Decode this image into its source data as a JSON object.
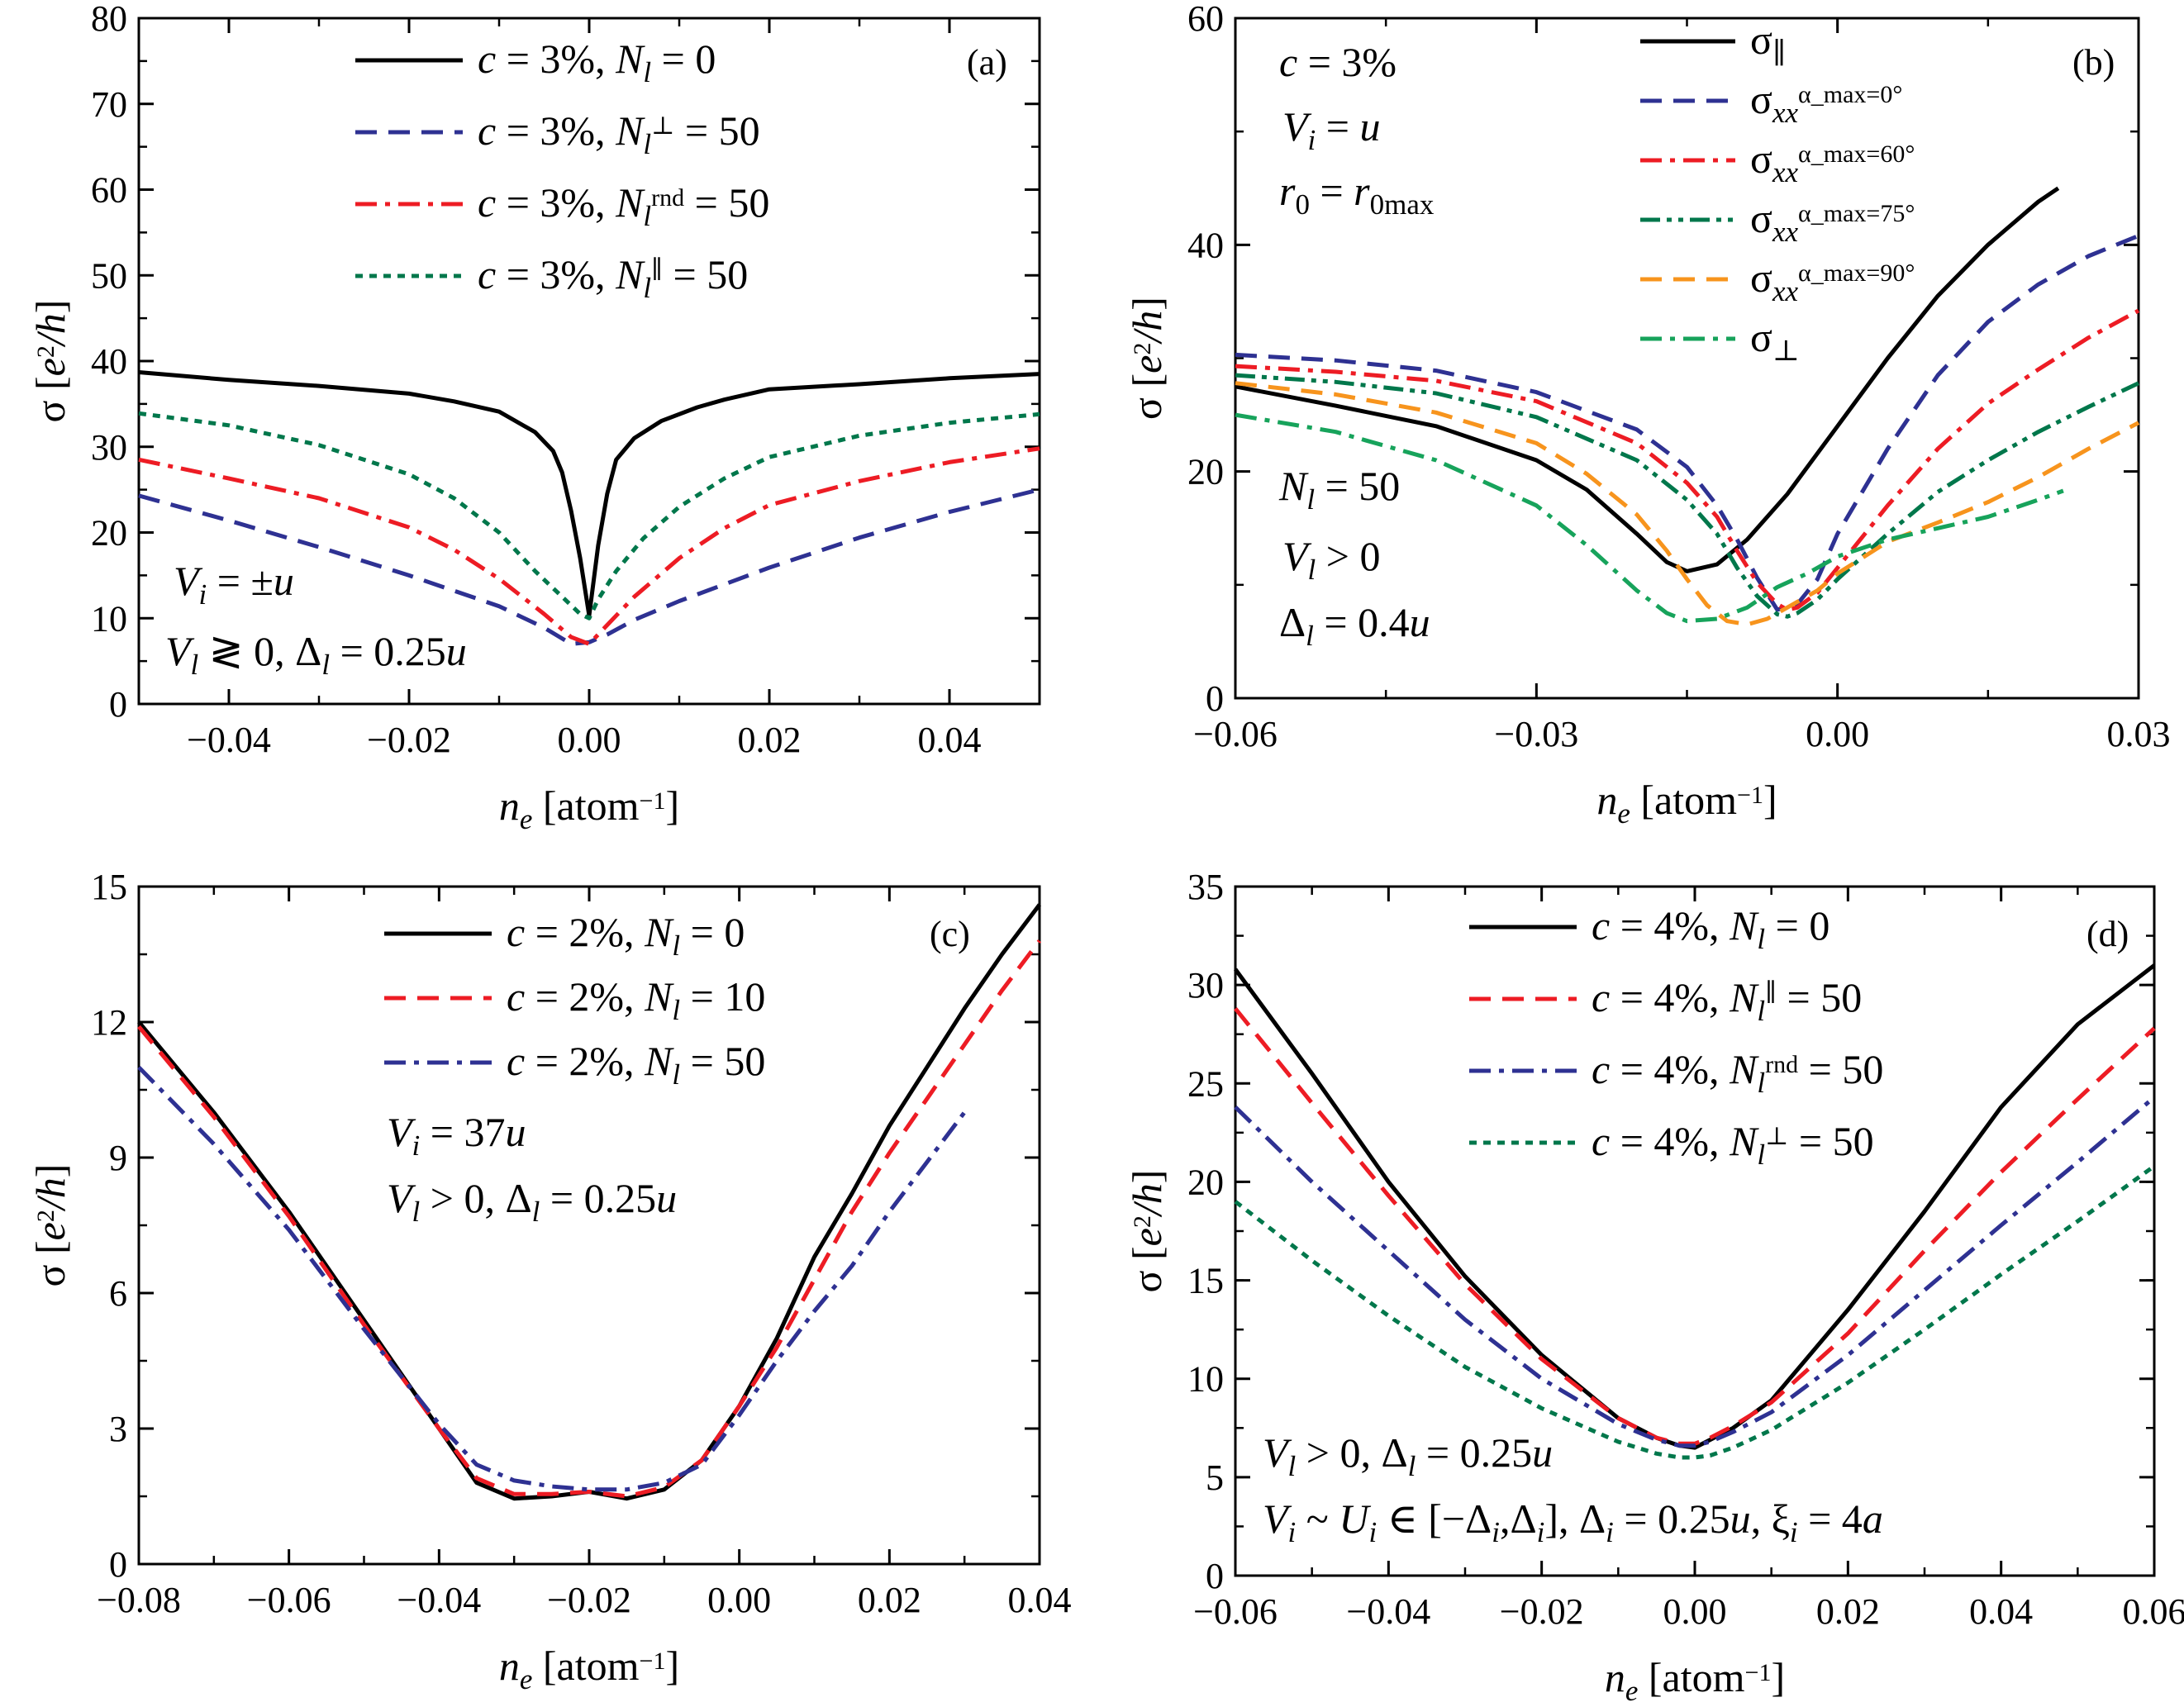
{
  "chart_data": [
    {
      "panel": "a",
      "type": "line",
      "panel_label": "(a)",
      "xlabel": "n_e [atom^-1]",
      "ylabel": "σ [e^2/h]",
      "xlim": [
        -0.05,
        0.05
      ],
      "ylim": [
        0,
        80
      ],
      "xticks": [
        -0.04,
        -0.02,
        0.0,
        0.02,
        0.04
      ],
      "xtick_labels": [
        "−0.04",
        "−0.02",
        "0.00",
        "0.02",
        "0.04"
      ],
      "yticks": [
        0,
        10,
        20,
        30,
        40,
        50,
        60,
        70,
        80
      ],
      "ytick_labels": [
        "0",
        "10",
        "20",
        "30",
        "40",
        "50",
        "60",
        "70",
        "80"
      ],
      "legend_position": "top",
      "annotations": [
        "V_i = ±u",
        "V_l ≷ 0, Δ_l = 0.25u"
      ],
      "series": [
        {
          "name": "c = 3%, N_l = 0",
          "color": "#000000",
          "dash": "solid",
          "x": [
            -0.05,
            -0.04,
            -0.03,
            -0.02,
            -0.015,
            -0.01,
            -0.006,
            -0.004,
            -0.003,
            -0.002,
            -0.001,
            0.0,
            0.001,
            0.002,
            0.003,
            0.005,
            0.008,
            0.012,
            0.015,
            0.02,
            0.03,
            0.04,
            0.05
          ],
          "y": [
            38.7,
            37.8,
            37.1,
            36.2,
            35.3,
            34.1,
            31.7,
            29.5,
            27.0,
            22.5,
            17.0,
            10.3,
            18.5,
            24.5,
            28.5,
            31.0,
            33.0,
            34.6,
            35.5,
            36.7,
            37.3,
            38.0,
            38.5
          ]
        },
        {
          "name": "c = 3%, N_l^⊥ = 50",
          "color": "#2e3192",
          "dash": "dash",
          "x": [
            -0.05,
            -0.04,
            -0.03,
            -0.02,
            -0.01,
            -0.005,
            -0.002,
            0.0,
            0.002,
            0.005,
            0.01,
            0.02,
            0.03,
            0.04,
            0.05
          ],
          "y": [
            24.3,
            21.4,
            18.3,
            15.0,
            11.4,
            8.9,
            7.0,
            7.2,
            8.1,
            9.8,
            12.0,
            15.9,
            19.4,
            22.4,
            25.0
          ]
        },
        {
          "name": "c = 3%, N_l^rnd = 50",
          "color": "#ed1c24",
          "dash": "dashdot",
          "x": [
            -0.05,
            -0.04,
            -0.03,
            -0.02,
            -0.015,
            -0.01,
            -0.005,
            -0.002,
            0.0,
            0.002,
            0.005,
            0.01,
            0.015,
            0.02,
            0.03,
            0.04,
            0.05
          ],
          "y": [
            28.5,
            26.3,
            24.0,
            20.6,
            18.0,
            14.6,
            10.5,
            7.8,
            7.0,
            9.2,
            12.5,
            17.0,
            20.5,
            23.2,
            26.0,
            28.2,
            29.8
          ]
        },
        {
          "name": "c = 3%, N_l^∥ = 50",
          "color": "#00774b",
          "dash": "dot",
          "x": [
            -0.05,
            -0.04,
            -0.03,
            -0.02,
            -0.015,
            -0.01,
            -0.006,
            -0.003,
            -0.001,
            0.0,
            0.001,
            0.003,
            0.006,
            0.01,
            0.015,
            0.02,
            0.03,
            0.04,
            0.05
          ],
          "y": [
            33.9,
            32.5,
            30.2,
            26.8,
            24.0,
            20.0,
            15.5,
            12.5,
            10.5,
            10.0,
            12.2,
            15.5,
            19.3,
            23.0,
            26.3,
            28.8,
            31.3,
            32.8,
            33.8
          ]
        }
      ]
    },
    {
      "panel": "b",
      "type": "line",
      "panel_label": "(b)",
      "xlabel": "n_e [atom^-1]",
      "ylabel": "σ [e^2/h]",
      "xlim": [
        -0.06,
        0.03
      ],
      "ylim": [
        0,
        60
      ],
      "xticks": [
        -0.06,
        -0.03,
        0.0,
        0.03
      ],
      "xtick_labels": [
        "−0.06",
        "−0.03",
        "0.00",
        "0.03"
      ],
      "yticks": [
        0,
        20,
        40,
        60
      ],
      "ytick_labels": [
        "0",
        "20",
        "40",
        "60"
      ],
      "legend_position": "top-right",
      "annotations_top": [
        "c = 3%",
        "V_i = u",
        "r_0 = r_0max"
      ],
      "annotations_bottom": [
        "N_l = 50",
        "V_l > 0",
        "Δ_l = 0.4u"
      ],
      "series": [
        {
          "name": "σ_∥",
          "color": "#000000",
          "dash": "solid",
          "x": [
            -0.06,
            -0.05,
            -0.04,
            -0.03,
            -0.025,
            -0.02,
            -0.017,
            -0.015,
            -0.012,
            -0.009,
            -0.005,
            0.0,
            0.005,
            0.01,
            0.015,
            0.02,
            0.022
          ],
          "y": [
            27.5,
            25.8,
            24.0,
            21.0,
            18.4,
            14.5,
            12.0,
            11.2,
            11.8,
            14.0,
            18.0,
            24.0,
            30.0,
            35.5,
            40.0,
            43.8,
            45.0
          ]
        },
        {
          "name": "σ_xx^(α_max=0°)",
          "color": "#2e3192",
          "dash": "dash",
          "x": [
            -0.06,
            -0.05,
            -0.04,
            -0.03,
            -0.02,
            -0.015,
            -0.012,
            -0.01,
            -0.008,
            -0.006,
            -0.004,
            -0.002,
            0.0,
            0.005,
            0.01,
            0.015,
            0.02,
            0.025,
            0.03
          ],
          "y": [
            30.3,
            29.8,
            28.9,
            27.0,
            23.7,
            20.4,
            17.0,
            14.0,
            10.6,
            7.8,
            8.3,
            10.5,
            14.5,
            22.0,
            28.5,
            33.2,
            36.5,
            39.0,
            40.8
          ]
        },
        {
          "name": "σ_xx^(α_max=60°)",
          "color": "#ed1c24",
          "dash": "dashdot",
          "x": [
            -0.06,
            -0.05,
            -0.04,
            -0.03,
            -0.02,
            -0.015,
            -0.012,
            -0.01,
            -0.008,
            -0.006,
            -0.005,
            -0.004,
            -0.002,
            0.0,
            0.005,
            0.01,
            0.015,
            0.02,
            0.025,
            0.03
          ],
          "y": [
            29.3,
            28.8,
            28.0,
            26.2,
            22.5,
            19.0,
            16.0,
            13.0,
            10.2,
            8.3,
            7.8,
            8.0,
            9.3,
            11.5,
            17.0,
            22.0,
            26.0,
            29.0,
            31.8,
            34.2
          ]
        },
        {
          "name": "σ_xx^(α_max=75°)",
          "color": "#00774b",
          "dash": "dashdotdot",
          "x": [
            -0.06,
            -0.05,
            -0.04,
            -0.03,
            -0.02,
            -0.015,
            -0.012,
            -0.01,
            -0.008,
            -0.006,
            -0.005,
            -0.004,
            -0.002,
            0.0,
            0.005,
            0.01,
            0.015,
            0.02,
            0.025,
            0.03
          ],
          "y": [
            28.5,
            27.9,
            26.9,
            24.8,
            21.0,
            17.5,
            14.5,
            11.5,
            9.0,
            7.4,
            7.2,
            7.5,
            8.7,
            10.5,
            14.5,
            18.2,
            21.0,
            23.5,
            25.7,
            27.8
          ]
        },
        {
          "name": "σ_xx^(α_max=90°)",
          "color": "#f7941d",
          "dash": "dash",
          "x": [
            -0.06,
            -0.05,
            -0.04,
            -0.03,
            -0.025,
            -0.02,
            -0.017,
            -0.015,
            -0.013,
            -0.011,
            -0.009,
            -0.007,
            -0.005,
            -0.002,
            0.0,
            0.005,
            0.01,
            0.015,
            0.02,
            0.025,
            0.03
          ],
          "y": [
            27.8,
            26.8,
            25.2,
            22.5,
            19.8,
            16.2,
            13.0,
            10.5,
            8.2,
            6.8,
            6.5,
            7.0,
            8.0,
            9.5,
            11.0,
            13.8,
            15.5,
            17.3,
            19.5,
            22.0,
            24.3
          ]
        },
        {
          "name": "σ_⊥",
          "color": "#17a35b",
          "dash": "dashdot",
          "x": [
            -0.06,
            -0.05,
            -0.04,
            -0.03,
            -0.025,
            -0.02,
            -0.017,
            -0.015,
            -0.012,
            -0.009,
            -0.006,
            -0.003,
            0.0,
            0.005,
            0.01,
            0.015,
            0.02,
            0.0225
          ],
          "y": [
            25.0,
            23.5,
            21.0,
            17.0,
            13.5,
            9.5,
            7.5,
            6.8,
            7.0,
            8.0,
            9.8,
            11.0,
            12.5,
            14.0,
            15.0,
            16.0,
            17.5,
            18.3
          ]
        }
      ]
    },
    {
      "panel": "c",
      "type": "line",
      "panel_label": "(c)",
      "xlabel": "n_e [atom^-1]",
      "ylabel": "σ [e^2/h]",
      "xlim": [
        -0.08,
        0.04
      ],
      "ylim": [
        0,
        15
      ],
      "xticks": [
        -0.08,
        -0.06,
        -0.04,
        -0.02,
        0.0,
        0.02,
        0.04
      ],
      "xtick_labels": [
        "−0.08",
        "−0.06",
        "−0.04",
        "−0.02",
        "0.00",
        "0.02",
        "0.04"
      ],
      "yticks": [
        0,
        3,
        6,
        9,
        12,
        15
      ],
      "ytick_labels": [
        "0",
        "3",
        "6",
        "9",
        "12",
        "15"
      ],
      "legend_position": "top",
      "annotations": [
        "V_i = 37u",
        "V_l > 0, Δ_l = 0.25u"
      ],
      "series": [
        {
          "name": "c = 2%, N_l = 0",
          "color": "#000000",
          "dash": "solid",
          "x": [
            -0.08,
            -0.07,
            -0.06,
            -0.05,
            -0.04,
            -0.035,
            -0.03,
            -0.025,
            -0.02,
            -0.015,
            -0.01,
            -0.005,
            0.0,
            0.005,
            0.01,
            0.015,
            0.02,
            0.025,
            0.03,
            0.035,
            0.04
          ],
          "y": [
            12.0,
            10.0,
            7.8,
            5.4,
            3.0,
            1.8,
            1.45,
            1.5,
            1.6,
            1.45,
            1.65,
            2.3,
            3.5,
            5.0,
            6.8,
            8.2,
            9.7,
            11.0,
            12.3,
            13.5,
            14.6
          ]
        },
        {
          "name": "c = 2%, N_l = 10",
          "color": "#ed1c24",
          "dash": "dash",
          "x": [
            -0.08,
            -0.07,
            -0.06,
            -0.05,
            -0.04,
            -0.035,
            -0.03,
            -0.025,
            -0.02,
            -0.015,
            -0.01,
            -0.005,
            0.0,
            0.005,
            0.01,
            0.015,
            0.02,
            0.025,
            0.03,
            0.035,
            0.04
          ],
          "y": [
            11.9,
            9.9,
            7.7,
            5.3,
            3.0,
            1.9,
            1.55,
            1.55,
            1.6,
            1.5,
            1.7,
            2.3,
            3.5,
            4.8,
            6.3,
            7.8,
            9.1,
            10.3,
            11.5,
            12.7,
            13.8
          ]
        },
        {
          "name": "c = 2%, N_l = 50",
          "color": "#2e3192",
          "dash": "dashdot",
          "x": [
            -0.08,
            -0.07,
            -0.06,
            -0.05,
            -0.04,
            -0.035,
            -0.03,
            -0.025,
            -0.02,
            -0.015,
            -0.01,
            -0.005,
            0.0,
            0.005,
            0.01,
            0.015,
            0.02,
            0.025,
            0.03
          ],
          "y": [
            11.0,
            9.3,
            7.4,
            5.2,
            3.1,
            2.2,
            1.85,
            1.72,
            1.65,
            1.65,
            1.8,
            2.2,
            3.3,
            4.5,
            5.6,
            6.6,
            7.8,
            8.9,
            10.0
          ]
        }
      ]
    },
    {
      "panel": "d",
      "type": "line",
      "panel_label": "(d)",
      "xlabel": "n_e [atom^-1]",
      "ylabel": "σ [e^2/h]",
      "xlim": [
        -0.06,
        0.06
      ],
      "ylim": [
        0,
        35
      ],
      "xticks": [
        -0.06,
        -0.04,
        -0.02,
        0.0,
        0.02,
        0.04,
        0.06
      ],
      "xtick_labels": [
        "−0.06",
        "−0.04",
        "−0.02",
        "0.00",
        "0.02",
        "0.04",
        "0.06"
      ],
      "yticks": [
        0,
        5,
        10,
        15,
        20,
        25,
        30,
        35
      ],
      "ytick_labels": [
        "0",
        "5",
        "10",
        "15",
        "20",
        "25",
        "30",
        "35"
      ],
      "legend_position": "top",
      "annotations": [
        "V_l > 0, Δ_l = 0.25u",
        "V_i ~ U_i ∈ [−Δ_i,Δ_i], Δ_i = 0.25u, ξ_i = 4a"
      ],
      "series": [
        {
          "name": "c = 4%, N_l = 0",
          "color": "#000000",
          "dash": "solid",
          "x": [
            -0.06,
            -0.05,
            -0.04,
            -0.03,
            -0.02,
            -0.01,
            -0.005,
            -0.002,
            0.0,
            0.002,
            0.005,
            0.01,
            0.02,
            0.03,
            0.04,
            0.05,
            0.06
          ],
          "y": [
            30.8,
            25.5,
            20.0,
            15.2,
            11.2,
            8.0,
            7.0,
            6.6,
            6.5,
            6.9,
            7.5,
            8.9,
            13.5,
            18.5,
            23.8,
            28.0,
            31.0
          ]
        },
        {
          "name": "c = 4%, N_l^∥ = 50",
          "color": "#ed1c24",
          "dash": "dash",
          "x": [
            -0.06,
            -0.05,
            -0.04,
            -0.03,
            -0.02,
            -0.01,
            -0.005,
            -0.002,
            0.0,
            0.002,
            0.005,
            0.01,
            0.02,
            0.03,
            0.04,
            0.05,
            0.06
          ],
          "y": [
            28.8,
            24.0,
            19.3,
            14.8,
            11.0,
            8.0,
            7.0,
            6.7,
            6.7,
            7.0,
            7.6,
            8.8,
            12.3,
            16.5,
            20.5,
            24.2,
            27.8
          ]
        },
        {
          "name": "c = 4%, N_l^rnd = 50",
          "color": "#2e3192",
          "dash": "dashdot",
          "x": [
            -0.06,
            -0.05,
            -0.04,
            -0.03,
            -0.02,
            -0.01,
            -0.005,
            -0.002,
            0.0,
            0.002,
            0.005,
            0.01,
            0.02,
            0.03,
            0.04,
            0.05,
            0.06
          ],
          "y": [
            23.8,
            20.0,
            16.5,
            13.0,
            10.0,
            7.7,
            6.9,
            6.6,
            6.6,
            6.8,
            7.3,
            8.3,
            11.2,
            14.5,
            17.8,
            21.0,
            24.3
          ]
        },
        {
          "name": "c = 4%, N_l^⊥ = 50",
          "color": "#00774b",
          "dash": "dot",
          "x": [
            -0.06,
            -0.05,
            -0.04,
            -0.03,
            -0.02,
            -0.01,
            -0.005,
            -0.002,
            0.0,
            0.002,
            0.005,
            0.01,
            0.02,
            0.03,
            0.04,
            0.05,
            0.06
          ],
          "y": [
            19.0,
            16.0,
            13.2,
            10.6,
            8.5,
            6.8,
            6.2,
            6.0,
            6.0,
            6.1,
            6.5,
            7.4,
            9.8,
            12.5,
            15.3,
            18.0,
            20.8
          ]
        }
      ]
    }
  ]
}
